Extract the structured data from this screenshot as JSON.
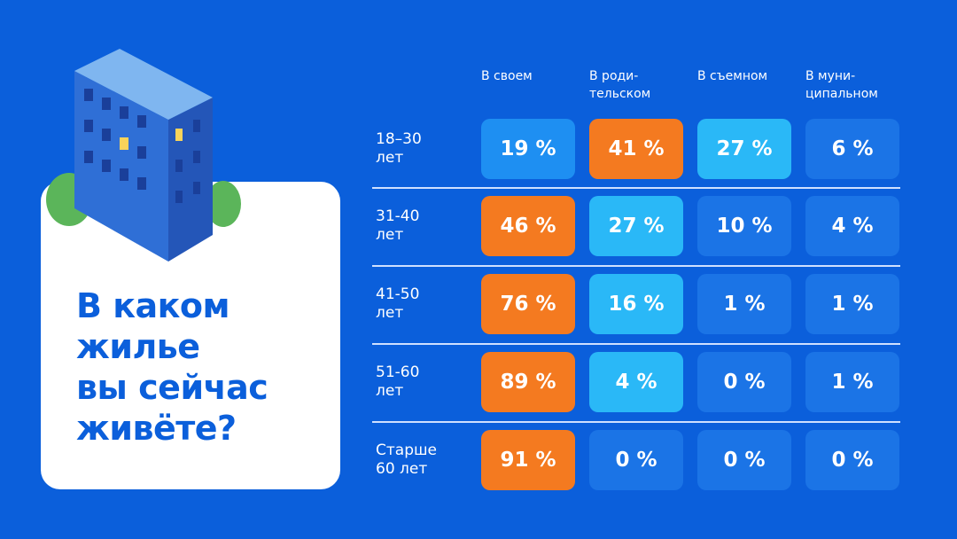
{
  "title": "В каком\nжилье\nвы сейчас\nживёте?",
  "table": {
    "columns": [
      "В своем",
      "В роди-\nтельском",
      "В съемном",
      "В муни-\nципальном"
    ],
    "rows": [
      {
        "label": "18–30\nлет",
        "cells": [
          {
            "text": "19 %",
            "color": "#1e8ff2"
          },
          {
            "text": "41 %",
            "color": "#f47a20"
          },
          {
            "text": "27 %",
            "color": "#2ab8f7"
          },
          {
            "text": "6 %",
            "color": "#1b74e6"
          }
        ]
      },
      {
        "label": "31-40\nлет",
        "cells": [
          {
            "text": "46 %",
            "color": "#f47a20"
          },
          {
            "text": "27 %",
            "color": "#2ab8f7"
          },
          {
            "text": "10 %",
            "color": "#1b74e6"
          },
          {
            "text": "4 %",
            "color": "#1b74e6"
          }
        ]
      },
      {
        "label": "41-50\nлет",
        "cells": [
          {
            "text": "76 %",
            "color": "#f47a20"
          },
          {
            "text": "16 %",
            "color": "#2ab8f7"
          },
          {
            "text": "1 %",
            "color": "#1b74e6"
          },
          {
            "text": "1 %",
            "color": "#1b74e6"
          }
        ]
      },
      {
        "label": "51-60\nлет",
        "cells": [
          {
            "text": "89 %",
            "color": "#f47a20"
          },
          {
            "text": "4 %",
            "color": "#2ab8f7"
          },
          {
            "text": "0 %",
            "color": "#1b74e6"
          },
          {
            "text": "1 %",
            "color": "#1b74e6"
          }
        ]
      },
      {
        "label": "Старше\n60 лет",
        "cells": [
          {
            "text": "91 %",
            "color": "#f47a20"
          },
          {
            "text": "0 %",
            "color": "#1b74e6"
          },
          {
            "text": "0 %",
            "color": "#1b74e6"
          },
          {
            "text": "0 %",
            "color": "#1b74e6"
          }
        ]
      }
    ]
  }
}
